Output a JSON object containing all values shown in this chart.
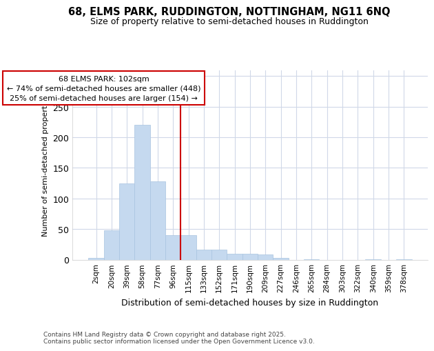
{
  "title_line1": "68, ELMS PARK, RUDDINGTON, NOTTINGHAM, NG11 6NQ",
  "title_line2": "Size of property relative to semi-detached houses in Ruddington",
  "xlabel": "Distribution of semi-detached houses by size in Ruddington",
  "ylabel": "Number of semi-detached properties",
  "categories": [
    "2sqm",
    "20sqm",
    "39sqm",
    "58sqm",
    "77sqm",
    "96sqm",
    "115sqm",
    "133sqm",
    "152sqm",
    "171sqm",
    "190sqm",
    "209sqm",
    "227sqm",
    "246sqm",
    "265sqm",
    "284sqm",
    "303sqm",
    "322sqm",
    "340sqm",
    "359sqm",
    "378sqm"
  ],
  "values": [
    3,
    48,
    125,
    220,
    128,
    40,
    40,
    16,
    16,
    10,
    10,
    8,
    3,
    0,
    1,
    0,
    0,
    0,
    1,
    0,
    1
  ],
  "bar_color": "#c5d9ef",
  "bar_edge_color": "#a8c4e0",
  "vline_index": 5,
  "vline_color": "#cc0000",
  "annotation_line1": "68 ELMS PARK: 102sqm",
  "annotation_line2": "← 74% of semi-detached houses are smaller (448)",
  "annotation_line3": "25% of semi-detached houses are larger (154) →",
  "annotation_box_color": "#ffffff",
  "annotation_box_edge": "#cc0000",
  "ylim": [
    0,
    310
  ],
  "yticks": [
    0,
    50,
    100,
    150,
    200,
    250,
    300
  ],
  "footer_line1": "Contains HM Land Registry data © Crown copyright and database right 2025.",
  "footer_line2": "Contains public sector information licensed under the Open Government Licence v3.0.",
  "bg_color": "#ffffff",
  "plot_bg_color": "#ffffff",
  "grid_color": "#d0d8e8"
}
